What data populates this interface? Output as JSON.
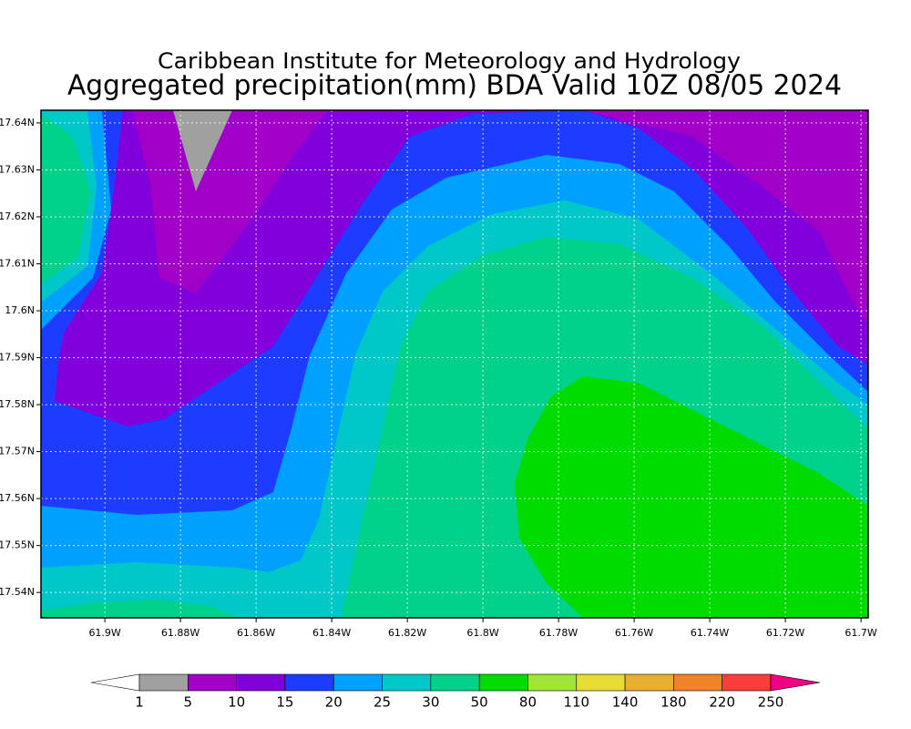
{
  "header": {
    "title": "Caribbean Institute for Meteorology and Hydrology",
    "subtitle": "Aggregated precipitation(mm) BDA Valid 10Z 08/05 2024"
  },
  "map": {
    "xlim": [
      -61.9169,
      -61.6981
    ],
    "ylim": [
      17.5346,
      17.6427
    ],
    "grid": true,
    "xticks": [
      {
        "value": -61.9,
        "label": "61.9W"
      },
      {
        "value": -61.88,
        "label": "61.88W"
      },
      {
        "value": -61.86,
        "label": "61.86W"
      },
      {
        "value": -61.84,
        "label": "61.84W"
      },
      {
        "value": -61.82,
        "label": "61.82W"
      },
      {
        "value": -61.8,
        "label": "61.8W"
      },
      {
        "value": -61.78,
        "label": "61.78W"
      },
      {
        "value": -61.76,
        "label": "61.76W"
      },
      {
        "value": -61.74,
        "label": "61.74W"
      },
      {
        "value": -61.72,
        "label": "61.72W"
      },
      {
        "value": -61.7,
        "label": "61.7W"
      }
    ],
    "yticks": [
      {
        "value": 17.64,
        "label": "17.64N"
      },
      {
        "value": 17.63,
        "label": "17.63N"
      },
      {
        "value": 17.62,
        "label": "17.62N"
      },
      {
        "value": 17.61,
        "label": "17.61N"
      },
      {
        "value": 17.6,
        "label": "17.6N"
      },
      {
        "value": 17.59,
        "label": "17.59N"
      },
      {
        "value": 17.58,
        "label": "17.58N"
      },
      {
        "value": 17.57,
        "label": "17.57N"
      },
      {
        "value": 17.56,
        "label": "17.56N"
      },
      {
        "value": 17.55,
        "label": "17.55N"
      },
      {
        "value": 17.54,
        "label": "17.54N"
      }
    ]
  },
  "colorbar": {
    "levels": [
      1,
      5,
      10,
      15,
      20,
      25,
      30,
      50,
      80,
      110,
      140,
      180,
      220,
      250
    ],
    "colors": [
      "#ffffff",
      "#a0a0a0",
      "#a000c8",
      "#8200dc",
      "#1e3cff",
      "#00a0ff",
      "#00c8c8",
      "#00d28c",
      "#00dc00",
      "#a0e632",
      "#e6dc32",
      "#e6af2d",
      "#f08228",
      "#fa3c3c",
      "#f00082"
    ]
  }
}
